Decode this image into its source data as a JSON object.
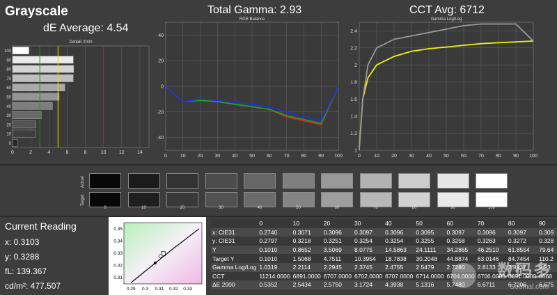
{
  "header": {
    "app_title": "Grayscale",
    "de_average": "dE Average: 4.54",
    "total_gamma": "Total Gamma: 2.93",
    "cct_avg": "CCT Avg: 6712"
  },
  "chart_data": [
    {
      "type": "bar",
      "title": "DeltaE 2000",
      "orientation": "horizontal",
      "categories": [
        "0",
        "10",
        "20",
        "30",
        "40",
        "50",
        "60",
        "70",
        "80",
        "90",
        "100"
      ],
      "values": [
        0.54,
        2.54,
        2.58,
        3.17,
        4.39,
        5.13,
        5.75,
        6.67,
        6.72,
        6.68,
        1.8
      ],
      "xlim": [
        0,
        15
      ],
      "xticks": [
        "0",
        "2",
        "4",
        "6",
        "8",
        "10",
        "12",
        "14"
      ],
      "yticks": [
        "100",
        "90",
        "80",
        "70",
        "60",
        "50",
        "40",
        "30",
        "20",
        "10",
        "0"
      ],
      "reference_lines": [
        {
          "value": 3,
          "color": "#2e8b2e"
        },
        {
          "value": 5,
          "color": "#e6e600"
        },
        {
          "value": 10,
          "color": "#d11b1b"
        }
      ]
    },
    {
      "type": "line",
      "title": "RGB Balance",
      "x": [
        0,
        10,
        20,
        30,
        40,
        50,
        60,
        70,
        80,
        90,
        100
      ],
      "series": [
        {
          "color": "#e02020",
          "values": [
            0,
            -12,
            -11,
            -12,
            -14,
            -16,
            -18,
            -24,
            -27,
            -30,
            0
          ]
        },
        {
          "color": "#20a020",
          "values": [
            0,
            -12,
            -11,
            -12,
            -14,
            -16,
            -18,
            -23,
            -26,
            -29,
            0
          ]
        },
        {
          "color": "#2030e0",
          "values": [
            0,
            -12,
            -10,
            -11,
            -13,
            -14,
            -16,
            -20,
            -24,
            -27,
            0
          ]
        }
      ],
      "xlim": [
        0,
        100
      ],
      "ylim": [
        -50,
        50
      ],
      "xticks": [
        "0",
        "10",
        "20",
        "30",
        "40",
        "50",
        "60",
        "70",
        "80",
        "90",
        "100"
      ],
      "yticks": [
        "40",
        "20",
        "0",
        "-20",
        "-40"
      ]
    },
    {
      "type": "line",
      "title": "Gamma Log/Log",
      "x": [
        0,
        2,
        5,
        10,
        20,
        30,
        40,
        50,
        60,
        70,
        80,
        90,
        100
      ],
      "series": [
        {
          "color": "#f2f200",
          "values": [
            1.03,
            1.6,
            1.85,
            2.0,
            2.1,
            2.16,
            2.19,
            2.21,
            2.23,
            2.25,
            2.26,
            2.27,
            2.28
          ]
        },
        {
          "color": "#9a9a9a",
          "values": [
            1.0,
            1.6,
            2.0,
            2.2,
            2.3,
            2.34,
            2.38,
            2.42,
            2.46,
            2.48,
            2.48,
            2.48,
            2.28
          ]
        }
      ],
      "xlim": [
        0,
        100
      ],
      "ylim": [
        1,
        2.5
      ],
      "xticks": [
        "0",
        "10",
        "20",
        "30",
        "40",
        "50",
        "60",
        "70",
        "80",
        "90",
        "100"
      ],
      "yticks": [
        "2.4",
        "2.2",
        "2",
        "1.8",
        "1.6",
        "1.4",
        "1.2",
        "1"
      ]
    },
    {
      "type": "scatter",
      "xlim": [
        0.285,
        0.34
      ],
      "ylim": [
        0.305,
        0.355
      ],
      "xticks": [
        "0.29",
        "0.3",
        "0.31",
        "0.32",
        "0.33"
      ],
      "yticks": [
        "0.35",
        "0.34",
        "0.33",
        "0.32",
        "0.31"
      ],
      "point": {
        "x": 0.3103,
        "y": 0.3288
      },
      "target": {
        "x": 0.3127,
        "y": 0.329
      }
    },
    {
      "type": "table",
      "columns": [
        "",
        "0",
        "10",
        "20",
        "30",
        "40",
        "50",
        "60",
        "70",
        "80",
        "90"
      ],
      "rows": [
        [
          "x: CIE31",
          "0.2740",
          "0.3071",
          "0.3096",
          "0.3097",
          "0.3096",
          "0.3095",
          "0.3097",
          "0.3096",
          "0.3097",
          "0.309"
        ],
        [
          "y: CIE31",
          "0.2797",
          "0.3218",
          "0.3251",
          "0.3254",
          "0.3254",
          "0.3255",
          "0.3258",
          "0.3263",
          "0.3272",
          "0.328"
        ],
        [
          "Y",
          "0.1010",
          "0.8652",
          "3.5069",
          "8.0775",
          "14.5863",
          "24.1111",
          "34.2865",
          "46.2510",
          "61.8554",
          "79.64"
        ],
        [
          "Target Y",
          "0.1010",
          "1.5068",
          "4.7511",
          "10.3954",
          "18.7838",
          "30.2048",
          "44.8874",
          "63.0146",
          "84.7454",
          "110.2"
        ],
        [
          "Gamma Log/Log",
          "1.0319",
          "2.2114",
          "2.2945",
          "2.3745",
          "2.4755",
          "2.5479",
          "2.7280",
          "2.8133",
          "2.8937",
          "2.93"
        ],
        [
          "CCT",
          "11214.0000",
          "6891.0000",
          "6707.0000",
          "6702.0000",
          "6707.0000",
          "6714.0000",
          "6704.0000",
          "6706.0000",
          "6691.0000",
          "6668"
        ],
        [
          "ΔE 2000",
          "0.5352",
          "2.5434",
          "2.5750",
          "3.1724",
          "4.3938",
          "5.1316",
          "5.7480",
          "6.6711",
          "6.7206",
          "6.675"
        ]
      ]
    }
  ],
  "swatches": {
    "row_actual_label": "Actual",
    "row_target_label": "Target",
    "labels": [
      "0",
      "10",
      "20",
      "30",
      "40",
      "50",
      "60",
      "70",
      "80",
      "90",
      "100"
    ],
    "actual_colors": [
      "#080808",
      "#1b1b1b",
      "#333333",
      "#4c4c4c",
      "#666666",
      "#7f7f7f",
      "#999999",
      "#b2b2b2",
      "#cccccc",
      "#e5e5e5",
      "#ffffff"
    ],
    "target_colors": [
      "#080808",
      "#1f1f1f",
      "#383838",
      "#515151",
      "#6b6b6b",
      "#848484",
      "#9e9e9e",
      "#b7b7b7",
      "#d1d1d1",
      "#eaeaea",
      "#ffffff"
    ]
  },
  "reading": {
    "title": "Current Reading",
    "x": "x: 0.3103",
    "y": "y: 0.3288",
    "fl": "fL: 139.367",
    "cdm2": "cd/m²: 477.507"
  },
  "watermark": {
    "text": "数码多",
    "sub": "Soomal.com"
  }
}
